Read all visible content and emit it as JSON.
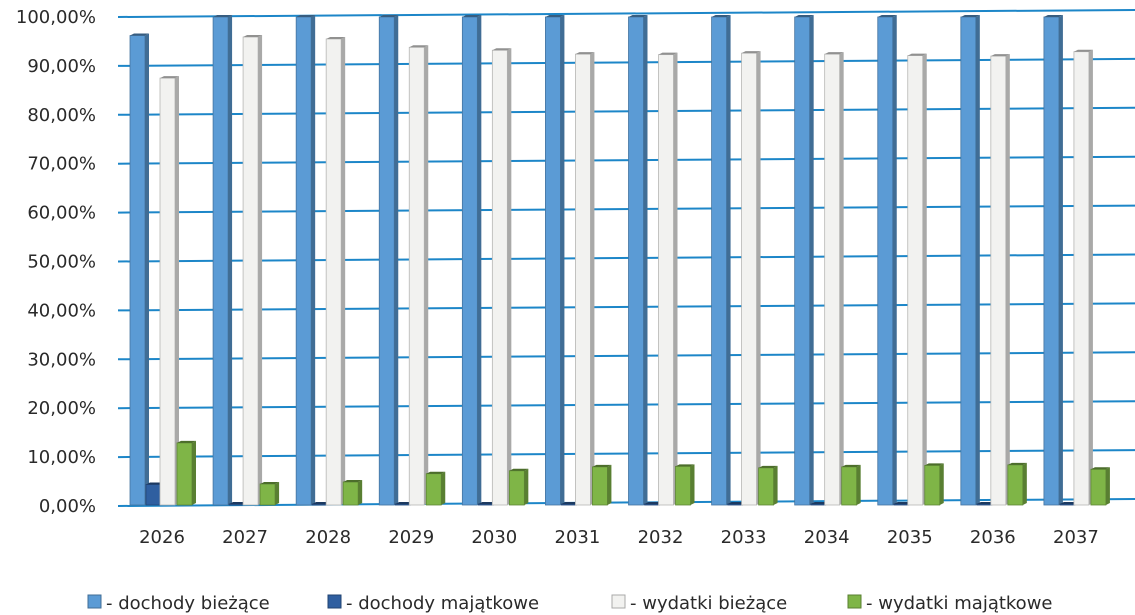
{
  "chart_data": {
    "type": "bar",
    "categories": [
      "2026",
      "2027",
      "2028",
      "2029",
      "2030",
      "2031",
      "2032",
      "2033",
      "2034",
      "2035",
      "2036",
      "2037"
    ],
    "series": [
      {
        "name": "- dochody bieżące",
        "color": "#5b9bd5",
        "values": [
          96.0,
          99.8,
          99.8,
          99.8,
          99.8,
          99.8,
          99.8,
          99.8,
          99.8,
          99.8,
          99.8,
          99.8
        ]
      },
      {
        "name": "- dochody majątkowe",
        "color": "#2f5fa0",
        "values": [
          4.2,
          0.2,
          0.2,
          0.2,
          0.2,
          0.2,
          0.2,
          0.2,
          0.2,
          0.2,
          0.2,
          0.2
        ]
      },
      {
        "name": "- wydatki bieżące",
        "color": "#f2f2f0",
        "values": [
          87.3,
          95.7,
          95.3,
          93.6,
          93.0,
          92.2,
          92.1,
          92.4,
          92.2,
          91.9,
          91.8,
          92.7
        ]
      },
      {
        "name": "- wydatki majątkowe",
        "color": "#7fb547",
        "values": [
          12.7,
          4.3,
          4.7,
          6.4,
          7.0,
          7.8,
          7.9,
          7.6,
          7.8,
          8.1,
          8.2,
          7.3
        ]
      }
    ],
    "yticks": [
      "0,00%",
      "10,00%",
      "20,00%",
      "30,00%",
      "40,00%",
      "50,00%",
      "60,00%",
      "70,00%",
      "80,00%",
      "90,00%",
      "100,00%"
    ],
    "ylim": [
      0,
      100
    ],
    "grid": true,
    "legend_position": "bottom",
    "title": "",
    "xlabel": "",
    "ylabel": ""
  }
}
